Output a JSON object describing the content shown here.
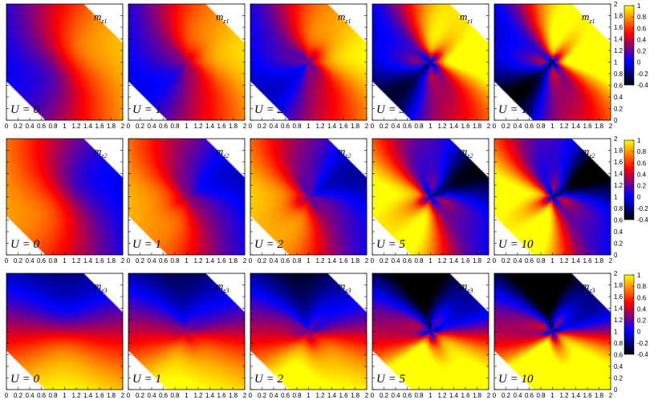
{
  "chart_data": {
    "type": "heatmap",
    "rows": [
      {
        "component": "m",
        "subscript": "z1"
      },
      {
        "component": "m",
        "subscript": "z2"
      },
      {
        "component": "m",
        "subscript": "z3"
      }
    ],
    "columns": [
      {
        "label": "U = 0",
        "U": 0
      },
      {
        "label": "U = 1",
        "U": 1
      },
      {
        "label": "U = 2",
        "U": 2
      },
      {
        "label": "U = 5",
        "U": 5
      },
      {
        "label": "U = 10",
        "U": 10
      }
    ],
    "x_range": [
      0,
      2
    ],
    "y_range": [
      0,
      2
    ],
    "x_ticks": [
      "0",
      "0.2",
      "0.4",
      "0.6",
      "0.8",
      "1",
      "1.2",
      "1.4",
      "1.6",
      "1.8",
      "2"
    ],
    "y_ticks": [
      "0",
      "0.2",
      "0.4",
      "0.6",
      "0.8",
      "1",
      "1.2",
      "1.4",
      "1.6",
      "1.8",
      "2"
    ],
    "domain": "hexagonal region bounded by x + y >= 0.667 and x + y <= 3.333, blank triangles at top-right and bottom-left",
    "colorbar": {
      "range": [
        -0.4,
        1
      ],
      "ticks": [
        "1",
        "0.8",
        "0.6",
        "0.4",
        "0.2",
        "0",
        "-0.2",
        "-0.4"
      ],
      "colormap": [
        "#000000",
        "#0000ff",
        "#ff0000",
        "#ffff00"
      ]
    },
    "colors": {
      "black": "#000000",
      "blue": "#0000ff",
      "red": "#ff0000",
      "yellow": "#ffff00"
    }
  }
}
